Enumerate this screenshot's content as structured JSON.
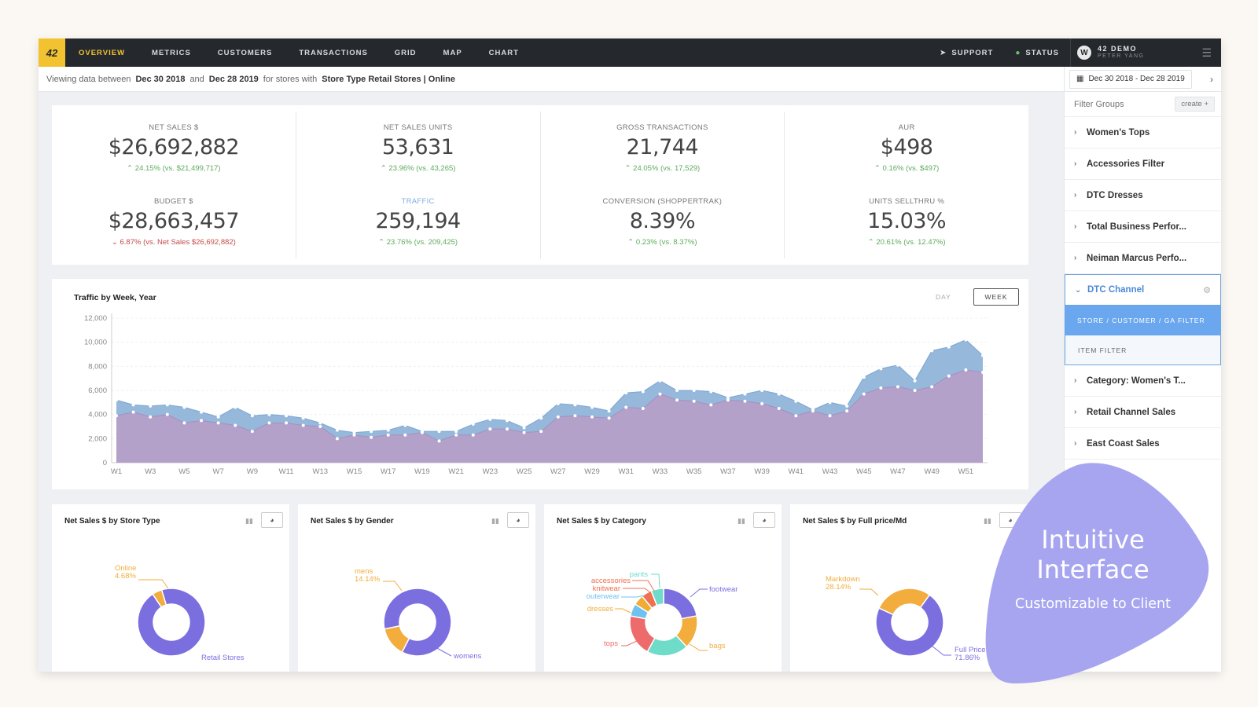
{
  "nav": {
    "logo": "42",
    "items": [
      "OVERVIEW",
      "METRICS",
      "CUSTOMERS",
      "TRANSACTIONS",
      "GRID",
      "MAP",
      "CHART"
    ],
    "active": "OVERVIEW",
    "support": "SUPPORT",
    "status": "STATUS",
    "user_name": "42 DEMO",
    "user_sub": "PETER YANG"
  },
  "filterbar": {
    "prefix": "Viewing data between",
    "start": "Dec 30 2018",
    "and": "and",
    "end": "Dec 28 2019",
    "middle": "for stores with",
    "filter": "Store Type Retail Stores | Online"
  },
  "sidebar": {
    "date_range": "Dec 30 2018 - Dec 28 2019",
    "filter_placeholder": "Filter Groups",
    "create_label": "create +",
    "groups_top": [
      "Women's Tops",
      "Accessories Filter",
      "DTC Dresses",
      "Total Business Perfor...",
      "Neiman Marcus Perfo..."
    ],
    "open_group": "DTC Channel",
    "sub_selected": "STORE / CUSTOMER / GA FILTER",
    "sub_item": "ITEM FILTER",
    "groups_bottom": [
      "Category: Women's T...",
      "Retail Channel Sales",
      "East Coast Sales"
    ]
  },
  "kpis": [
    {
      "label": "NET SALES $",
      "value": "$26,692,882",
      "delta": "24.15% (vs. $21,499,717)",
      "dir": "up"
    },
    {
      "label": "BUDGET $",
      "value": "$28,663,457",
      "delta": "6.87% (vs. Net Sales $26,692,882)",
      "dir": "down"
    },
    {
      "label": "NET SALES UNITS",
      "value": "53,631",
      "delta": "23.96% (vs. 43,265)",
      "dir": "up"
    },
    {
      "label": "TRAFFIC",
      "value": "259,194",
      "delta": "23.76% (vs. 209,425)",
      "dir": "up"
    },
    {
      "label": "GROSS TRANSACTIONS",
      "value": "21,744",
      "delta": "24.05% (vs. 17,529)",
      "dir": "up"
    },
    {
      "label": "CONVERSION (SHOPPERTRAK)",
      "value": "8.39%",
      "delta": "0.23% (vs. 8.37%)",
      "dir": "up"
    },
    {
      "label": "AUR",
      "value": "$498",
      "delta": "0.16% (vs. $497)",
      "dir": "up"
    },
    {
      "label": "UNITS SELLTHRU %",
      "value": "15.03%",
      "delta": "20.61% (vs. 12.47%)",
      "dir": "up"
    }
  ],
  "traffic": {
    "title": "Traffic by Week, Year",
    "toggle_day": "DAY",
    "toggle_week": "WEEK"
  },
  "chart_data": [
    {
      "type": "area",
      "title": "Traffic by Week, Year",
      "ylim": [
        0,
        12000
      ],
      "yticks": [
        "0",
        "2,000",
        "4,000",
        "6,000",
        "8,000",
        "10,000",
        "12,000"
      ],
      "xticks": [
        "W1",
        "W3",
        "W5",
        "W7",
        "W9",
        "W11",
        "W13",
        "W15",
        "W17",
        "W19",
        "W21",
        "W23",
        "W25",
        "W27",
        "W29",
        "W31",
        "W33",
        "W35",
        "W37",
        "W39",
        "W41",
        "W43",
        "W45",
        "W47",
        "W49",
        "W51"
      ],
      "x": [
        "W1",
        "W2",
        "W3",
        "W4",
        "W5",
        "W6",
        "W7",
        "W8",
        "W9",
        "W10",
        "W11",
        "W12",
        "W13",
        "W14",
        "W15",
        "W16",
        "W17",
        "W18",
        "W19",
        "W20",
        "W21",
        "W22",
        "W23",
        "W24",
        "W25",
        "W26",
        "W27",
        "W28",
        "W29",
        "W30",
        "W31",
        "W32",
        "W33",
        "W34",
        "W35",
        "W36",
        "W37",
        "W38",
        "W39",
        "W40",
        "W41",
        "W42",
        "W43",
        "W44",
        "W45",
        "W46",
        "W47",
        "W48",
        "W49",
        "W50",
        "W51",
        "W52"
      ],
      "series": [
        {
          "values": [
            5200,
            4800,
            4700,
            4800,
            4600,
            4200,
            3800,
            4600,
            3900,
            4000,
            3900,
            3700,
            3300,
            2700,
            2500,
            2600,
            2700,
            3100,
            2600,
            2600,
            2600,
            3200,
            3600,
            3500,
            2900,
            3700,
            4900,
            4800,
            4600,
            4300,
            5800,
            5900,
            6800,
            6000,
            6000,
            5900,
            5400,
            5700,
            6000,
            5700,
            5100,
            4400,
            5000,
            4700,
            7100,
            7800,
            8100,
            6800,
            9300,
            9600,
            10200,
            8900
          ],
          "color": "#8fb4d9"
        },
        {
          "values": [
            3900,
            4200,
            3800,
            4000,
            3300,
            3500,
            3300,
            3100,
            2600,
            3300,
            3300,
            3100,
            3000,
            2000,
            2300,
            2100,
            2300,
            2300,
            2500,
            1800,
            2300,
            2300,
            2800,
            2800,
            2500,
            2600,
            3800,
            3900,
            3800,
            3700,
            4600,
            4500,
            5700,
            5200,
            5100,
            4800,
            5200,
            5100,
            4900,
            4500,
            3900,
            4300,
            3900,
            4300,
            5700,
            6200,
            6300,
            6000,
            6300,
            7200,
            7700,
            7500
          ],
          "color": "#b59fc9"
        }
      ]
    },
    {
      "type": "pie",
      "title": "Net Sales $ by Store Type",
      "slices": [
        {
          "label": "Retail Stores",
          "value": 95.32,
          "color": "#7b6fe0"
        },
        {
          "label": "Online",
          "value": 4.68,
          "color": "#f2ad3c"
        }
      ],
      "labels": [
        {
          "text": "Online",
          "pct": "4.68%"
        },
        {
          "text": "Retail Stores",
          "pct": ""
        }
      ]
    },
    {
      "type": "pie",
      "title": "Net Sales $ by Gender",
      "slices": [
        {
          "label": "womens",
          "value": 85.86,
          "color": "#7b6fe0"
        },
        {
          "label": "mens",
          "value": 14.14,
          "color": "#f2ad3c"
        }
      ],
      "labels": [
        {
          "text": "mens",
          "pct": "14.14%"
        },
        {
          "text": "womens",
          "pct": ""
        }
      ]
    },
    {
      "type": "pie",
      "title": "Net Sales $ by Category",
      "slices": [
        {
          "label": "footwear",
          "value": 22,
          "color": "#7b6fe0"
        },
        {
          "label": "bags",
          "value": 16,
          "color": "#f2ad3c"
        },
        {
          "label": "tops",
          "value": 20,
          "color": "#6fdcc9"
        },
        {
          "label": "dresses",
          "value": 20,
          "color": "#ee6b6b"
        },
        {
          "label": "outerwear",
          "value": 6,
          "color": "#6fc2f0"
        },
        {
          "label": "knitwear",
          "value": 5,
          "color": "#f0ad36"
        },
        {
          "label": "accessories",
          "value": 5,
          "color": "#f0704f"
        },
        {
          "label": "pants",
          "value": 6,
          "color": "#6fdcc9"
        }
      ]
    },
    {
      "type": "pie",
      "title": "Net Sales $ by Full price/Md",
      "slices": [
        {
          "label": "Full Price",
          "value": 71.86,
          "color": "#7b6fe0"
        },
        {
          "label": "Markdown",
          "value": 28.14,
          "color": "#f2ad3c"
        }
      ],
      "labels": [
        {
          "text": "Markdown",
          "pct": "28.14%"
        },
        {
          "text": "Full Price",
          "pct": "71.86%"
        }
      ]
    }
  ],
  "promo": {
    "title_line1": "Intuitive",
    "title_line2": "Interface",
    "subtitle": "Customizable to Client",
    "color": "#a7a5f0"
  }
}
